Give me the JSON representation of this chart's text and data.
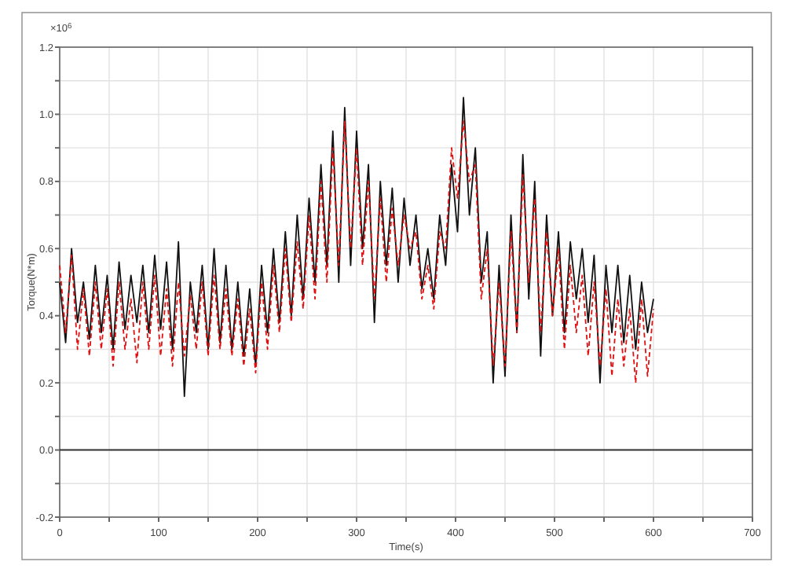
{
  "chart_data": {
    "type": "line",
    "xlabel": "Time(s)",
    "ylabel": "Torque(N*m)",
    "annotations": [
      "×10$^{6}$"
    ],
    "xlim": [
      0,
      700
    ],
    "xticks": [
      0,
      {
        "value": 50,
        "label": null
      },
      100,
      {
        "value": 150,
        "label": null
      },
      200,
      {
        "value": 250,
        "label": null
      },
      300,
      {
        "value": 350,
        "label": null
      },
      400,
      {
        "value": 450,
        "label": null
      },
      500,
      {
        "value": 550,
        "label": null
      },
      600,
      {
        "value": 650,
        "label": null
      },
      700
    ],
    "ylim": [
      -0.2,
      1.2
    ],
    "yticks": [
      -0.2,
      {
        "value": -0.1,
        "label": null
      },
      {
        "value": 0,
        "label": "0.0"
      },
      {
        "value": 0.1,
        "label": null
      },
      0.2,
      {
        "value": 0.3,
        "label": null
      },
      0.4,
      {
        "value": 0.5,
        "label": null
      },
      0.6,
      {
        "value": 0.7,
        "label": null
      },
      0.8,
      {
        "value": 0.9,
        "label": null
      },
      {
        "value": 1,
        "label": "1.0"
      },
      {
        "value": 1.1,
        "label": null
      },
      1.2
    ],
    "grid": true,
    "ref_lines": [
      {
        "axis": "y",
        "value": 0,
        "color": "#333333"
      }
    ],
    "x": [
      0,
      6,
      12,
      18,
      24,
      30,
      36,
      42,
      48,
      54,
      60,
      66,
      72,
      78,
      84,
      90,
      96,
      102,
      108,
      114,
      120,
      126,
      132,
      138,
      144,
      150,
      156,
      162,
      168,
      174,
      180,
      186,
      192,
      198,
      204,
      210,
      216,
      222,
      228,
      234,
      240,
      246,
      252,
      258,
      264,
      270,
      276,
      282,
      288,
      294,
      300,
      306,
      312,
      318,
      324,
      330,
      336,
      342,
      348,
      354,
      360,
      366,
      372,
      378,
      384,
      390,
      396,
      402,
      408,
      414,
      420,
      426,
      432,
      438,
      444,
      450,
      456,
      462,
      468,
      474,
      480,
      486,
      492,
      498,
      504,
      510,
      516,
      522,
      528,
      534,
      540,
      546,
      552,
      558,
      564,
      570,
      576,
      582,
      588,
      594,
      600
    ],
    "series": [
      {
        "color": "#111111",
        "line_style": "solid",
        "values": [
          0.5,
          0.32,
          0.6,
          0.38,
          0.5,
          0.33,
          0.55,
          0.35,
          0.52,
          0.3,
          0.56,
          0.36,
          0.52,
          0.38,
          0.55,
          0.35,
          0.58,
          0.36,
          0.56,
          0.3,
          0.62,
          0.16,
          0.5,
          0.35,
          0.55,
          0.3,
          0.6,
          0.32,
          0.55,
          0.3,
          0.5,
          0.28,
          0.48,
          0.25,
          0.55,
          0.35,
          0.6,
          0.38,
          0.65,
          0.4,
          0.7,
          0.45,
          0.75,
          0.5,
          0.85,
          0.55,
          0.95,
          0.5,
          1.02,
          0.55,
          0.95,
          0.6,
          0.85,
          0.38,
          0.8,
          0.55,
          0.78,
          0.5,
          0.75,
          0.55,
          0.7,
          0.48,
          0.6,
          0.45,
          0.7,
          0.55,
          0.85,
          0.65,
          1.05,
          0.7,
          0.9,
          0.5,
          0.65,
          0.2,
          0.55,
          0.22,
          0.7,
          0.35,
          0.88,
          0.45,
          0.8,
          0.28,
          0.7,
          0.4,
          0.65,
          0.35,
          0.62,
          0.45,
          0.6,
          0.38,
          0.58,
          0.2,
          0.55,
          0.35,
          0.55,
          0.32,
          0.52,
          0.3,
          0.5,
          0.35,
          0.45
        ]
      },
      {
        "color": "#e01010",
        "line_style": "dashed",
        "values": [
          0.55,
          0.35,
          0.58,
          0.3,
          0.48,
          0.28,
          0.5,
          0.3,
          0.48,
          0.25,
          0.5,
          0.3,
          0.45,
          0.26,
          0.5,
          0.3,
          0.52,
          0.28,
          0.48,
          0.25,
          0.5,
          0.28,
          0.46,
          0.3,
          0.5,
          0.28,
          0.52,
          0.3,
          0.48,
          0.28,
          0.45,
          0.25,
          0.42,
          0.23,
          0.5,
          0.3,
          0.55,
          0.35,
          0.6,
          0.38,
          0.62,
          0.42,
          0.7,
          0.45,
          0.8,
          0.5,
          0.9,
          0.55,
          0.98,
          0.6,
          0.9,
          0.55,
          0.8,
          0.45,
          0.75,
          0.5,
          0.72,
          0.55,
          0.7,
          0.6,
          0.65,
          0.45,
          0.55,
          0.42,
          0.65,
          0.6,
          0.9,
          0.75,
          0.98,
          0.8,
          0.85,
          0.45,
          0.6,
          0.25,
          0.5,
          0.25,
          0.65,
          0.35,
          0.82,
          0.5,
          0.75,
          0.35,
          0.65,
          0.4,
          0.6,
          0.3,
          0.55,
          0.35,
          0.52,
          0.28,
          0.5,
          0.25,
          0.48,
          0.22,
          0.45,
          0.25,
          0.42,
          0.2,
          0.45,
          0.22,
          0.42
        ]
      }
    ]
  }
}
